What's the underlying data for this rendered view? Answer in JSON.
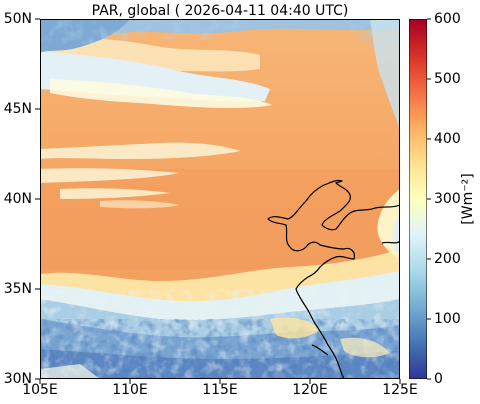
{
  "title": "PAR, global ( 2026-04-11 04:40 UTC)",
  "x_ticks": [
    "105E",
    "110E",
    "115E",
    "120E",
    "125E"
  ],
  "y_ticks": [
    "50N",
    "45N",
    "40N",
    "35N",
    "30N"
  ],
  "colorbar": {
    "ticks": [
      "600",
      "500",
      "400",
      "300",
      "200",
      "100",
      "0"
    ],
    "label": "[Wm⁻²]",
    "colors": [
      "#313695",
      "#4575b4",
      "#74add1",
      "#abd9e9",
      "#e0f3f8",
      "#ffffbf",
      "#fee090",
      "#fdae61",
      "#f46d43",
      "#d73027",
      "#a50026"
    ]
  },
  "field_colors": {
    "clear_sky": "#f4a668",
    "cloud_blue": "#6a95c8",
    "cloud_light": "#d9ecf3",
    "coast": "#000000"
  }
}
